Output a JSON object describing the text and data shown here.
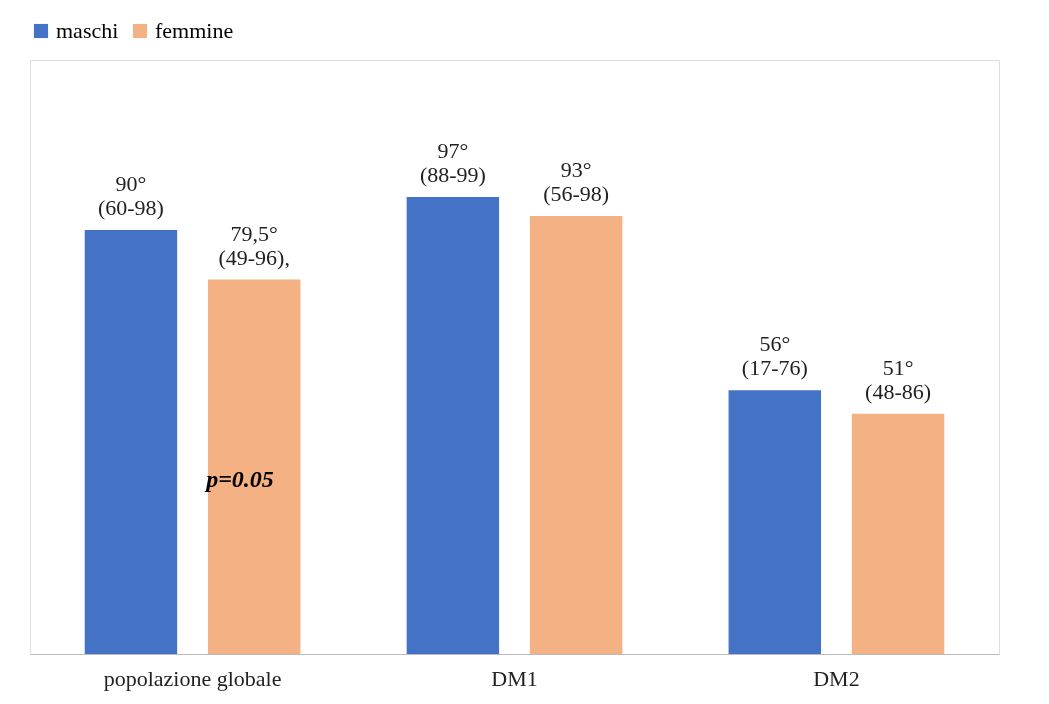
{
  "chart_data": {
    "type": "bar",
    "categories": [
      "popolazione globale",
      "DM1",
      "DM2"
    ],
    "series": [
      {
        "name": "maschi",
        "color": "#4472c4",
        "values": [
          90,
          97,
          56
        ],
        "value_labels": [
          "90°\n(60-98)",
          "97°\n(88-99)",
          "56°\n(17-76)"
        ]
      },
      {
        "name": "femmine",
        "color": "#f4b183",
        "values": [
          79.5,
          93,
          51
        ],
        "value_labels": [
          "79,5°\n(49-96),",
          "93°\n(56-98)",
          "51°\n(48-86)"
        ]
      }
    ],
    "annotations": [
      "p=0.05"
    ],
    "legend": "top",
    "grid": false
  }
}
